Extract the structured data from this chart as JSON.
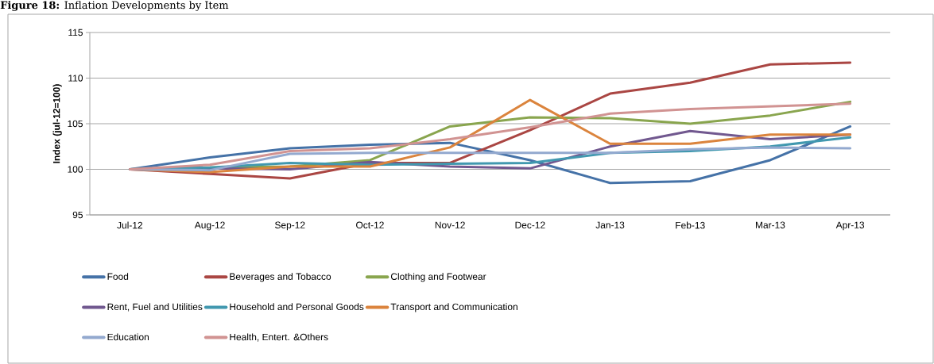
{
  "chart_data": {
    "type": "line",
    "title": "**Figure 18:** Inflation Developments by Item",
    "ylabel": "Index (jul-12=100)",
    "categories": [
      "Jul-12",
      "Aug-12",
      "Sep-12",
      "Oct-12",
      "Nov-12",
      "Dec-12",
      "Jan-13",
      "Feb-13",
      "Mar-13",
      "Apr-13"
    ],
    "ylim": [
      95,
      115
    ],
    "yticks": [
      95,
      100,
      105,
      110,
      115
    ],
    "grid": "y",
    "legend": "bottom",
    "marker": "none",
    "line_style": "solid",
    "series": [
      {
        "name": "Food",
        "color": "#4572a7",
        "values": [
          100,
          101.3,
          102.3,
          102.7,
          102.9,
          101.0,
          98.5,
          98.7,
          101.0,
          104.7
        ]
      },
      {
        "name": "Beverages and Tobacco",
        "color": "#aa4643",
        "values": [
          100,
          99.5,
          99.0,
          100.7,
          100.7,
          104.3,
          108.3,
          109.5,
          111.5,
          111.7
        ]
      },
      {
        "name": "Clothing and Footwear",
        "color": "#89a54e",
        "values": [
          100,
          100.2,
          100.3,
          101.0,
          104.7,
          105.7,
          105.6,
          105.0,
          105.9,
          107.4
        ]
      },
      {
        "name": "Rent, Fuel and Utilities",
        "color": "#71588f",
        "values": [
          100,
          100.1,
          100.0,
          100.8,
          100.3,
          100.1,
          102.5,
          104.2,
          103.3,
          103.8
        ]
      },
      {
        "name": "Household and Personal Goods",
        "color": "#4198af",
        "values": [
          100,
          100.2,
          100.7,
          100.5,
          100.6,
          100.7,
          101.8,
          102.0,
          102.5,
          103.5
        ]
      },
      {
        "name": "Transport and Communication",
        "color": "#db843d",
        "values": [
          100,
          99.7,
          100.3,
          100.3,
          102.4,
          107.6,
          102.8,
          102.8,
          103.8,
          103.8
        ]
      },
      {
        "name": "Education",
        "color": "#93a9cf",
        "values": [
          100,
          99.9,
          101.7,
          101.8,
          101.8,
          101.8,
          101.8,
          102.2,
          102.4,
          102.3
        ]
      },
      {
        "name": "Health, Entert. &Others",
        "color": "#d19392",
        "values": [
          100,
          100.5,
          102.0,
          102.3,
          103.3,
          104.6,
          106.1,
          106.6,
          106.9,
          107.2
        ]
      }
    ]
  }
}
